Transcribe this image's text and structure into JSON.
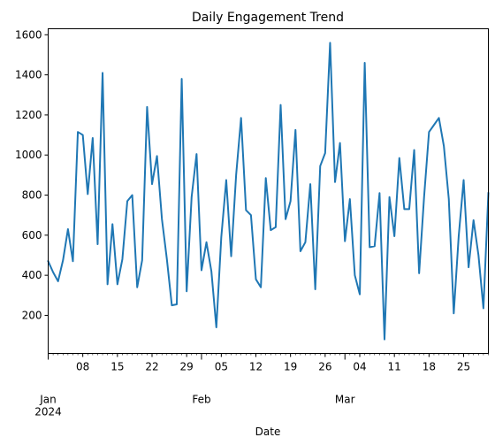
{
  "chart_data": {
    "type": "line",
    "title": "Daily Engagement Trend",
    "xlabel": "Date",
    "ylabel": "",
    "x_start": "2024-01-01",
    "x_end": "2024-03-30",
    "ylim": [
      10,
      1630
    ],
    "y_ticks": [
      200,
      400,
      600,
      800,
      1000,
      1200,
      1400,
      1600
    ],
    "x_ticks_major": [
      {
        "date": "2024-01-01",
        "label": "Jan",
        "sublabel": "2024"
      },
      {
        "date": "2024-02-01",
        "label": "Feb",
        "sublabel": ""
      },
      {
        "date": "2024-03-01",
        "label": "Mar",
        "sublabel": ""
      }
    ],
    "x_ticks_minor": [
      {
        "date": "2024-01-08",
        "label": "08"
      },
      {
        "date": "2024-01-15",
        "label": "15"
      },
      {
        "date": "2024-01-22",
        "label": "22"
      },
      {
        "date": "2024-01-29",
        "label": "29"
      },
      {
        "date": "2024-02-05",
        "label": "05"
      },
      {
        "date": "2024-02-12",
        "label": "12"
      },
      {
        "date": "2024-02-19",
        "label": "19"
      },
      {
        "date": "2024-02-26",
        "label": "26"
      },
      {
        "date": "2024-03-04",
        "label": "04"
      },
      {
        "date": "2024-03-11",
        "label": "11"
      },
      {
        "date": "2024-03-18",
        "label": "18"
      },
      {
        "date": "2024-03-25",
        "label": "25"
      }
    ],
    "grid": false,
    "line_color": "#1f77b4",
    "series": [
      {
        "values": [
          470,
          415,
          370,
          475,
          630,
          470,
          1115,
          1100,
          805,
          1085,
          555,
          1410,
          355,
          655,
          355,
          480,
          770,
          800,
          340,
          475,
          1240,
          855,
          995,
          680,
          480,
          250,
          255,
          1380,
          320,
          790,
          1005,
          425,
          565,
          420,
          140,
          590,
          875,
          495,
          900,
          1185,
          725,
          700,
          380,
          340,
          885,
          625,
          640,
          1250,
          680,
          770,
          1125,
          520,
          565,
          855,
          330,
          945,
          1010,
          1560,
          865,
          1060,
          570,
          780,
          400,
          305,
          1460,
          540,
          545,
          810,
          80,
          790,
          595,
          985,
          730,
          730,
          1025,
          410,
          790,
          1115,
          1150,
          1185,
          1045,
          780,
          210,
          595,
          875,
          440,
          675,
          500,
          235,
          810
        ]
      }
    ]
  }
}
